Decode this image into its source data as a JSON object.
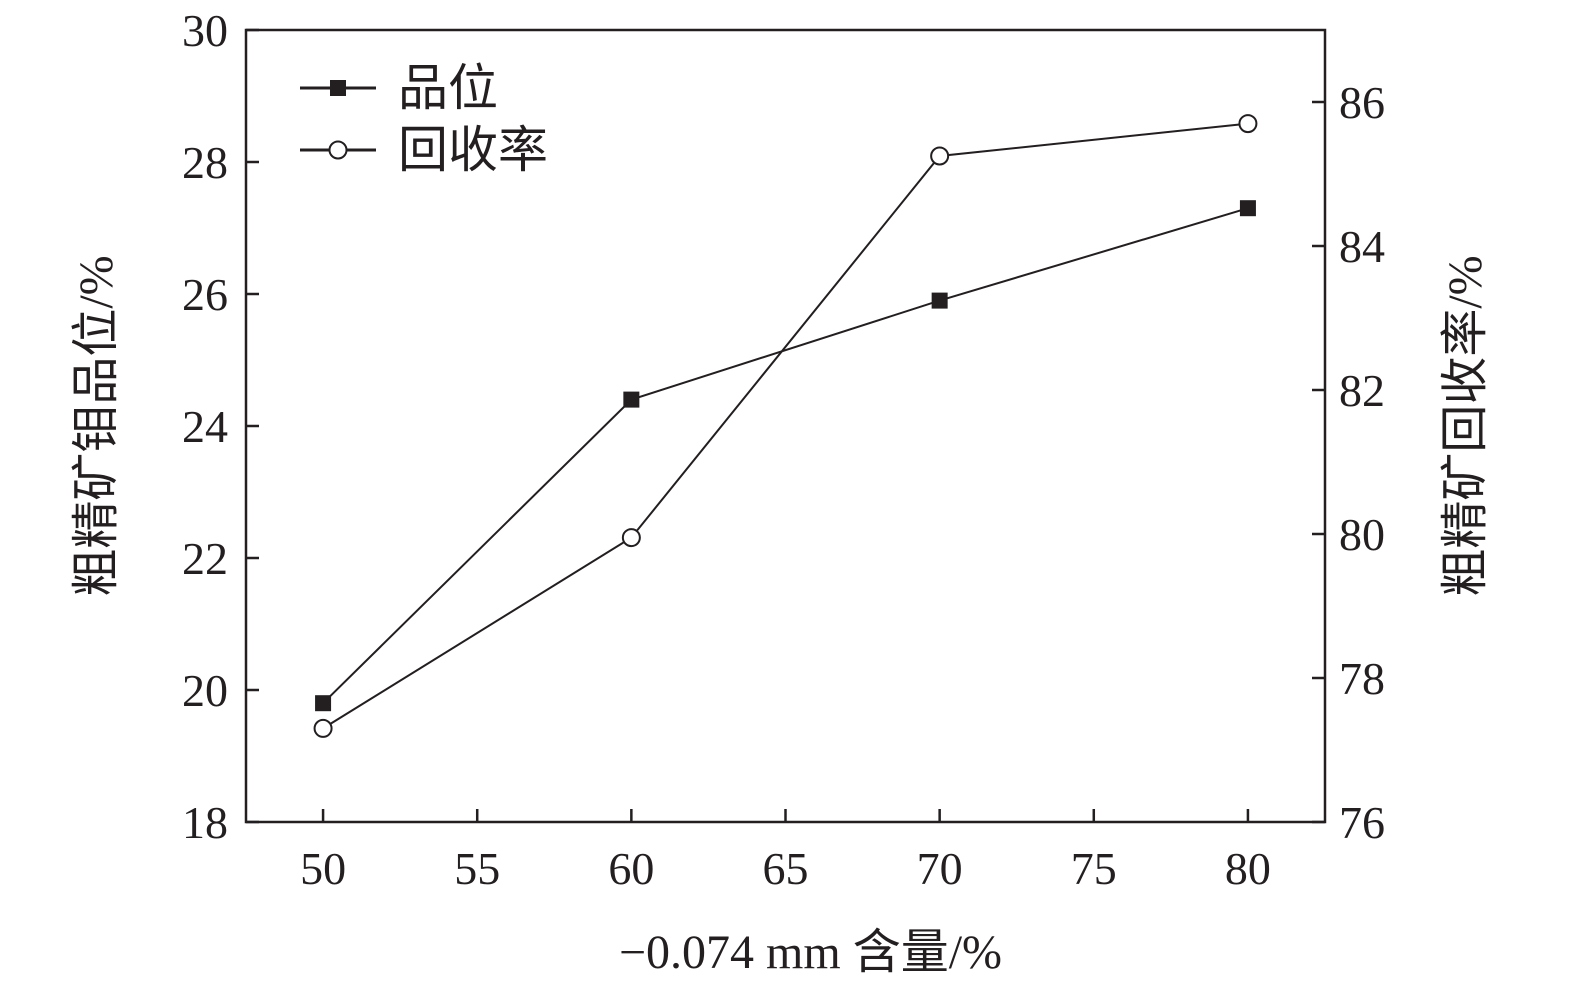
{
  "chart_data": {
    "type": "line",
    "xlabel": "−0.074 mm 含量/%",
    "ylabel_left": "粗精矿钼品位/%",
    "ylabel_right": "粗精矿回收率/%",
    "xlim": [
      47.5,
      82.5
    ],
    "ylim_left": [
      18,
      30
    ],
    "ylim_right": [
      76,
      87
    ],
    "x_ticks": [
      50,
      55,
      60,
      65,
      70,
      75,
      80
    ],
    "x_tick_labels": [
      "50",
      "55",
      "60",
      "65",
      "70",
      "75",
      "80"
    ],
    "y_left_ticks": [
      18,
      20,
      22,
      24,
      26,
      28,
      30
    ],
    "y_left_tick_labels": [
      "18",
      "20",
      "22",
      "24",
      "26",
      "28",
      "30"
    ],
    "y_right_ticks": [
      76,
      78,
      80,
      82,
      84,
      86
    ],
    "y_right_tick_labels": [
      "76",
      "78",
      "80",
      "82",
      "84",
      "86"
    ],
    "grid": false,
    "legend_position": "top-left",
    "series": [
      {
        "name": "品位",
        "axis": "left",
        "marker": "filled-square",
        "x": [
          50,
          60,
          70,
          80
        ],
        "y": [
          19.8,
          24.4,
          25.9,
          27.3
        ]
      },
      {
        "name": "回收率",
        "axis": "right",
        "marker": "open-circle",
        "x": [
          50,
          60,
          70,
          80
        ],
        "y": [
          77.3,
          79.95,
          85.25,
          85.7
        ]
      }
    ],
    "colors": {
      "line": "#231f20",
      "marker_fill": "#231f20",
      "open_marker_fill": "#ffffff"
    }
  }
}
